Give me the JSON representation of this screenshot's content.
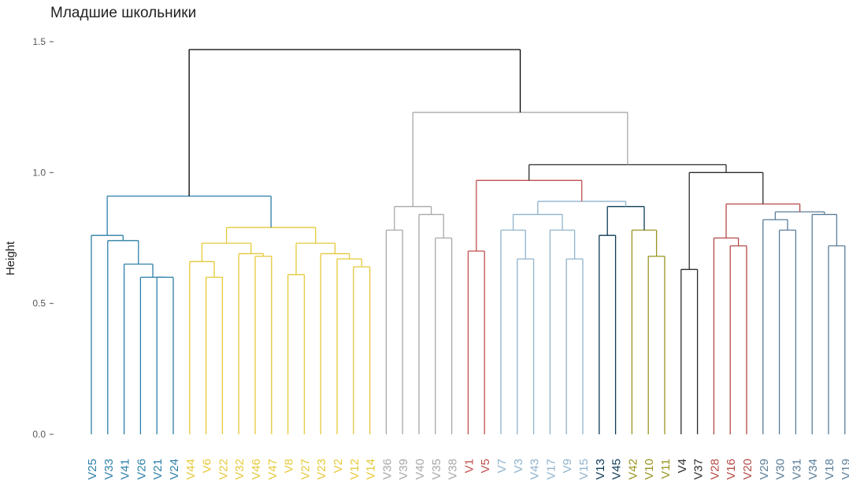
{
  "chart_data": {
    "type": "dendrogram",
    "title": "Младшие школьники",
    "ylabel": "Height",
    "xlabel": "",
    "ylim": [
      0,
      1.5
    ],
    "yticks": [
      0.0,
      0.5,
      1.0,
      1.5
    ],
    "ytick_labels": [
      "0.0",
      "0.5",
      "1.0",
      "1.5"
    ],
    "grid": false,
    "leaves": [
      "V25",
      "V33",
      "V41",
      "V26",
      "V21",
      "V24",
      "V44",
      "V6",
      "V22",
      "V32",
      "V46",
      "V47",
      "V8",
      "V27",
      "V23",
      "V2",
      "V12",
      "V14",
      "V36",
      "V39",
      "V40",
      "V35",
      "V38",
      "V1",
      "V5",
      "V7",
      "V3",
      "V43",
      "V17",
      "V9",
      "V15",
      "V13",
      "V45",
      "V42",
      "V10",
      "V11",
      "V4",
      "V37",
      "V28",
      "V16",
      "V20",
      "V29",
      "V30",
      "V31",
      "V34",
      "V18",
      "V19"
    ],
    "leaf_clusters": [
      0,
      0,
      0,
      0,
      0,
      0,
      1,
      1,
      1,
      1,
      1,
      1,
      1,
      1,
      1,
      1,
      1,
      1,
      2,
      2,
      2,
      2,
      2,
      3,
      3,
      4,
      4,
      4,
      4,
      4,
      4,
      5,
      5,
      6,
      6,
      6,
      7,
      7,
      8,
      8,
      8,
      9,
      9,
      9,
      9,
      9,
      9
    ],
    "cluster_colors": [
      "#2e7fa8",
      "#e6c93a",
      "#a8a8a8",
      "#c0504d",
      "#8fb3cc",
      "#0d3a57",
      "#9a9420",
      "#2b2b2b",
      "#b34a45",
      "#5a7d99"
    ],
    "root_color": "#000000",
    "merges": [
      {
        "a": "L4",
        "b": "L5",
        "h": 0.6,
        "c": 0
      },
      {
        "a": "L3",
        "b": "N1",
        "h": 0.6,
        "c": 0
      },
      {
        "a": "L2",
        "b": "N2",
        "h": 0.65,
        "c": 0
      },
      {
        "a": "L1",
        "b": "N3",
        "h": 0.74,
        "c": 0
      },
      {
        "a": "L0",
        "b": "N4",
        "h": 0.76,
        "c": 0
      },
      {
        "a": "L7",
        "b": "L8",
        "h": 0.6,
        "c": 1
      },
      {
        "a": "L6",
        "b": "N6",
        "h": 0.66,
        "c": 1
      },
      {
        "a": "L10",
        "b": "L11",
        "h": 0.68,
        "c": 1
      },
      {
        "a": "L9",
        "b": "N8",
        "h": 0.69,
        "c": 1
      },
      {
        "a": "N7",
        "b": "N9",
        "h": 0.73,
        "c": 1
      },
      {
        "a": "L16",
        "b": "L17",
        "h": 0.64,
        "c": 1
      },
      {
        "a": "L15",
        "b": "N11",
        "h": 0.67,
        "c": 1
      },
      {
        "a": "L14",
        "b": "N12",
        "h": 0.69,
        "c": 1
      },
      {
        "a": "L12",
        "b": "L13",
        "h": 0.61,
        "c": 1
      },
      {
        "a": "N14",
        "b": "N13",
        "h": 0.73,
        "c": 1
      },
      {
        "a": "N10",
        "b": "N15",
        "h": 0.79,
        "c": 1
      },
      {
        "a": "N5",
        "b": "N16",
        "h": 0.91,
        "c": 0
      },
      {
        "a": "L18",
        "b": "L19",
        "h": 0.78,
        "c": 2
      },
      {
        "a": "L21",
        "b": "L22",
        "h": 0.75,
        "c": 2
      },
      {
        "a": "L20",
        "b": "N19",
        "h": 0.84,
        "c": 2
      },
      {
        "a": "N18",
        "b": "N20",
        "h": 0.87,
        "c": 2
      },
      {
        "a": "L23",
        "b": "L24",
        "h": 0.7,
        "c": 3
      },
      {
        "a": "L26",
        "b": "L27",
        "h": 0.67,
        "c": 4
      },
      {
        "a": "L25",
        "b": "N23",
        "h": 0.78,
        "c": 4
      },
      {
        "a": "L29",
        "b": "L30",
        "h": 0.67,
        "c": 4
      },
      {
        "a": "L28",
        "b": "N25",
        "h": 0.78,
        "c": 4
      },
      {
        "a": "N24",
        "b": "N26",
        "h": 0.84,
        "c": 4
      },
      {
        "a": "L31",
        "b": "L32",
        "h": 0.76,
        "c": 5
      },
      {
        "a": "L34",
        "b": "L35",
        "h": 0.68,
        "c": 6
      },
      {
        "a": "L33",
        "b": "N29",
        "h": 0.78,
        "c": 6
      },
      {
        "a": "N28",
        "b": "N30",
        "h": 0.87,
        "c": 5
      },
      {
        "a": "N27",
        "b": "N31",
        "h": 0.89,
        "c": 4
      },
      {
        "a": "N22",
        "b": "N32",
        "h": 0.97,
        "c": 3
      },
      {
        "a": "L36",
        "b": "L37",
        "h": 0.63,
        "c": 7
      },
      {
        "a": "L39",
        "b": "L40",
        "h": 0.72,
        "c": 8
      },
      {
        "a": "L38",
        "b": "N35",
        "h": 0.75,
        "c": 8
      },
      {
        "a": "L42",
        "b": "L43",
        "h": 0.78,
        "c": 9
      },
      {
        "a": "L41",
        "b": "N37",
        "h": 0.82,
        "c": 9
      },
      {
        "a": "L45",
        "b": "L46",
        "h": 0.72,
        "c": 9
      },
      {
        "a": "L44",
        "b": "N39",
        "h": 0.84,
        "c": 9
      },
      {
        "a": "N38",
        "b": "N40",
        "h": 0.85,
        "c": 9
      },
      {
        "a": "N36",
        "b": "N41",
        "h": 0.88,
        "c": 8
      },
      {
        "a": "N34",
        "b": "N42",
        "h": 1.0,
        "c": 7
      },
      {
        "a": "N33",
        "b": "N43",
        "h": 1.03,
        "c": 7
      },
      {
        "a": "N21",
        "b": "N44",
        "h": 1.23,
        "c": 2
      },
      {
        "a": "N17",
        "b": "N45",
        "h": 1.47,
        "c": 7
      }
    ]
  }
}
